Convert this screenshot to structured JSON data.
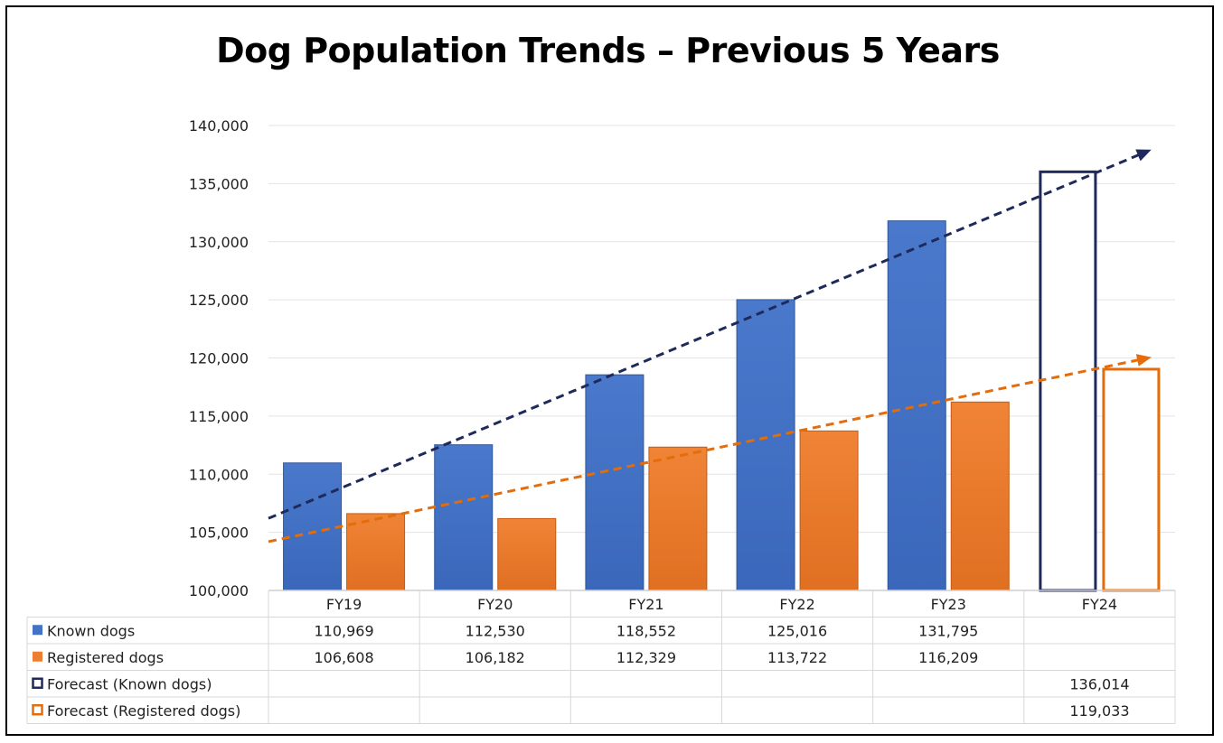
{
  "chart_data": {
    "type": "bar",
    "title": "Dog Population Trends – Previous 5 Years",
    "categories": [
      "FY19",
      "FY20",
      "FY21",
      "FY22",
      "FY23",
      "FY24"
    ],
    "ylim": [
      100000,
      140000
    ],
    "y_ticks": [
      {
        "value": 100000,
        "label": "100,000"
      },
      {
        "value": 105000,
        "label": "105,000"
      },
      {
        "value": 110000,
        "label": "110,000"
      },
      {
        "value": 115000,
        "label": "115,000"
      },
      {
        "value": 120000,
        "label": "120,000"
      },
      {
        "value": 125000,
        "label": "125,000"
      },
      {
        "value": 130000,
        "label": "130,000"
      },
      {
        "value": 135000,
        "label": "135,000"
      },
      {
        "value": 140000,
        "label": "140,000"
      }
    ],
    "grid": true,
    "legend_placement": "data-table",
    "series": [
      {
        "name": "Known dogs",
        "style": "filled",
        "color": "#4472C4",
        "values": [
          110969,
          112530,
          118552,
          125016,
          131795,
          null
        ],
        "labels": [
          "110,969",
          "112,530",
          "118,552",
          "125,016",
          "131,795",
          ""
        ]
      },
      {
        "name": "Registered dogs",
        "style": "filled",
        "color": "#ED7D31",
        "values": [
          106608,
          106182,
          112329,
          113722,
          116209,
          null
        ],
        "labels": [
          "106,608",
          "106,182",
          "112,329",
          "113,722",
          "116,209",
          ""
        ]
      },
      {
        "name": "Forecast (Known dogs)",
        "style": "outline",
        "color": "#1F2A5A",
        "values": [
          null,
          null,
          null,
          null,
          null,
          136014
        ],
        "labels": [
          "",
          "",
          "",
          "",
          "",
          "136,014"
        ]
      },
      {
        "name": "Forecast (Registered dogs)",
        "style": "outline",
        "color": "#E46C0A",
        "values": [
          null,
          null,
          null,
          null,
          null,
          119033
        ],
        "labels": [
          "",
          "",
          "",
          "",
          "",
          "119,033"
        ]
      }
    ],
    "trendlines": [
      {
        "series": "Known dogs",
        "color": "#1F2A5A",
        "dashed": true,
        "arrow": true,
        "from_value": 106200,
        "to_value": 137800
      },
      {
        "series": "Registered dogs",
        "color": "#E46C0A",
        "dashed": true,
        "arrow": true,
        "from_value": 104200,
        "to_value": 120000
      }
    ]
  }
}
